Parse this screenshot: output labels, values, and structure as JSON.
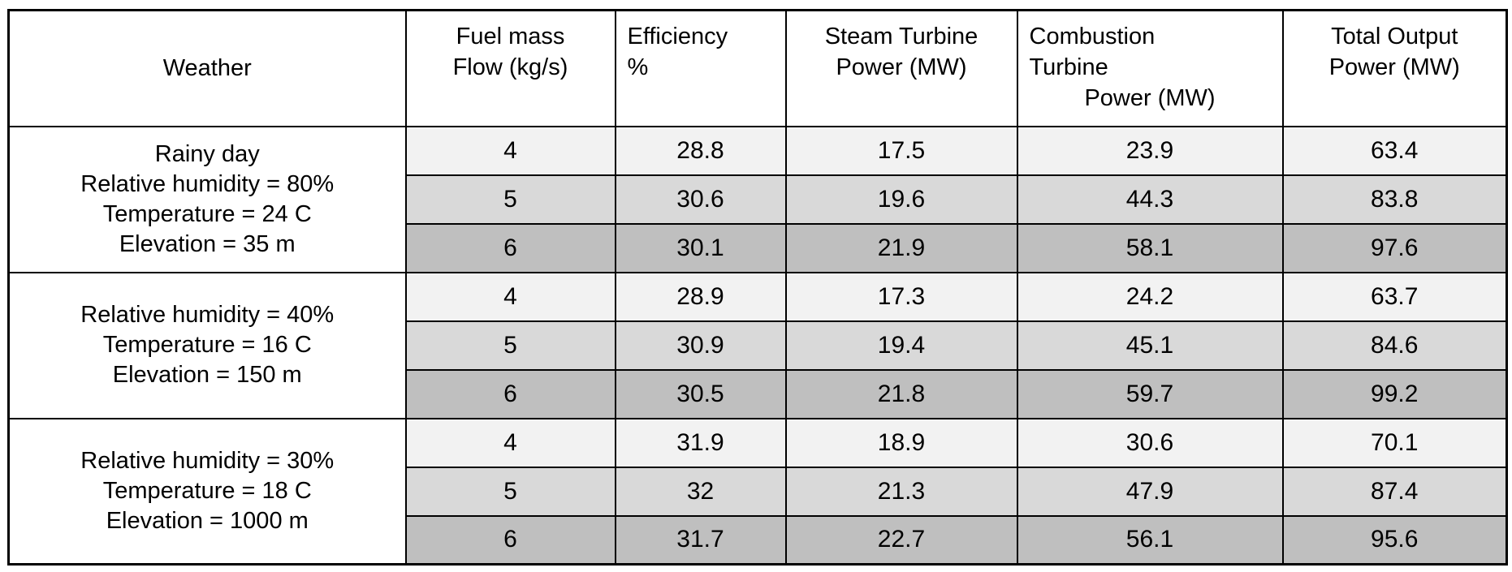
{
  "colors": {
    "background": "#ffffff",
    "border": "#000000",
    "text": "#000000",
    "row_shade_light": "#f2f2f2",
    "row_shade_medium": "#d9d9d9",
    "row_shade_dark": "#bfbfbf"
  },
  "header": {
    "weather": "Weather",
    "fuel_lines": [
      "Fuel mass",
      "Flow (kg/s)"
    ],
    "efficiency_lines": [
      "Efficiency",
      "%"
    ],
    "steam_lines": [
      "Steam Turbine",
      "Power (MW)"
    ],
    "combustion_lines": [
      "Combustion",
      "Turbine",
      "Power (MW)"
    ],
    "total_lines": [
      "Total Output",
      "Power (MW)"
    ]
  },
  "groups": [
    {
      "weather_lines": [
        "Rainy day",
        "Relative humidity = 80%",
        "Temperature = 24 C",
        "Elevation = 35 m"
      ],
      "rows": [
        {
          "fuel": "4",
          "efficiency": "28.8",
          "steam": "17.5",
          "combustion": "23.9",
          "total": "63.4"
        },
        {
          "fuel": "5",
          "efficiency": "30.6",
          "steam": "19.6",
          "combustion": "44.3",
          "total": "83.8"
        },
        {
          "fuel": "6",
          "efficiency": "30.1",
          "steam": "21.9",
          "combustion": "58.1",
          "total": "97.6"
        }
      ]
    },
    {
      "weather_lines": [
        "Relative humidity = 40%",
        "Temperature = 16 C",
        "Elevation = 150 m"
      ],
      "rows": [
        {
          "fuel": "4",
          "efficiency": "28.9",
          "steam": "17.3",
          "combustion": "24.2",
          "total": "63.7"
        },
        {
          "fuel": "5",
          "efficiency": "30.9",
          "steam": "19.4",
          "combustion": "45.1",
          "total": "84.6"
        },
        {
          "fuel": "6",
          "efficiency": "30.5",
          "steam": "21.8",
          "combustion": "59.7",
          "total": "99.2"
        }
      ]
    },
    {
      "weather_lines": [
        "Relative humidity = 30%",
        "Temperature = 18 C",
        "Elevation = 1000 m"
      ],
      "rows": [
        {
          "fuel": "4",
          "efficiency": "31.9",
          "steam": "18.9",
          "combustion": "30.6",
          "total": "70.1"
        },
        {
          "fuel": "5",
          "efficiency": "32",
          "steam": "21.3",
          "combustion": "47.9",
          "total": "87.4"
        },
        {
          "fuel": "6",
          "efficiency": "31.7",
          "steam": "22.7",
          "combustion": "56.1",
          "total": "95.6"
        }
      ]
    }
  ]
}
